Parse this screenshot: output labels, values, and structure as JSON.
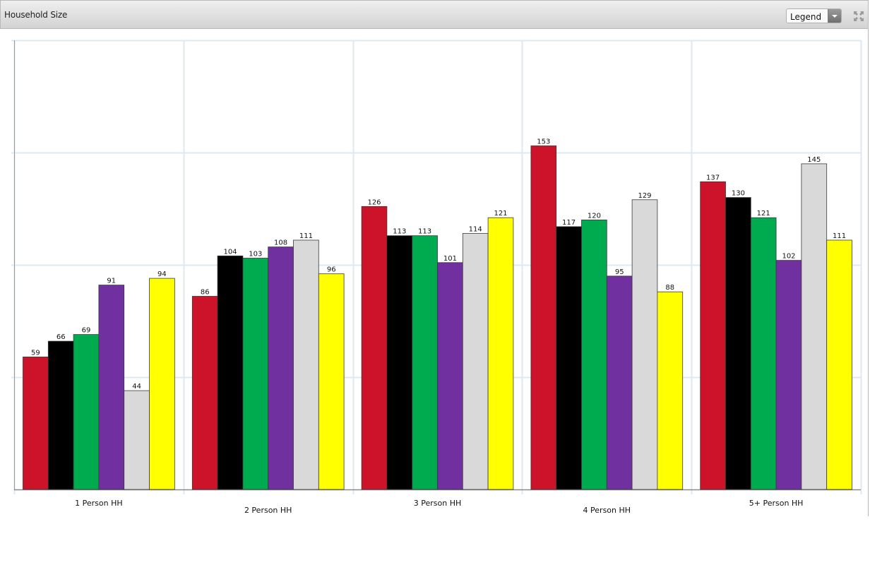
{
  "header": {
    "title": "Household Size",
    "legend_select": {
      "selected": "Legend"
    },
    "expand_icon": "expand-arrows-icon"
  },
  "chart_data": {
    "type": "bar",
    "title": "Household Size",
    "xlabel": "",
    "ylabel": "",
    "categories": [
      "1 Person HH",
      "2 Person HH",
      "3 Person HH",
      "4 Person HH",
      "5+ Person HH"
    ],
    "ylim": [
      0,
      200
    ],
    "grid": true,
    "legend": "hidden",
    "series": [
      {
        "color": "#cc1329",
        "values": [
          59,
          86,
          126,
          153,
          137
        ]
      },
      {
        "color": "#000000",
        "values": [
          66,
          104,
          113,
          117,
          130
        ]
      },
      {
        "color": "#00aa4f",
        "values": [
          69,
          103,
          113,
          120,
          121
        ]
      },
      {
        "color": "#7030a0",
        "values": [
          91,
          108,
          101,
          95,
          102
        ]
      },
      {
        "color": "#d9d9d9",
        "values": [
          44,
          111,
          114,
          129,
          145
        ]
      },
      {
        "color": "#ffff00",
        "values": [
          94,
          96,
          121,
          88,
          111
        ]
      }
    ]
  }
}
